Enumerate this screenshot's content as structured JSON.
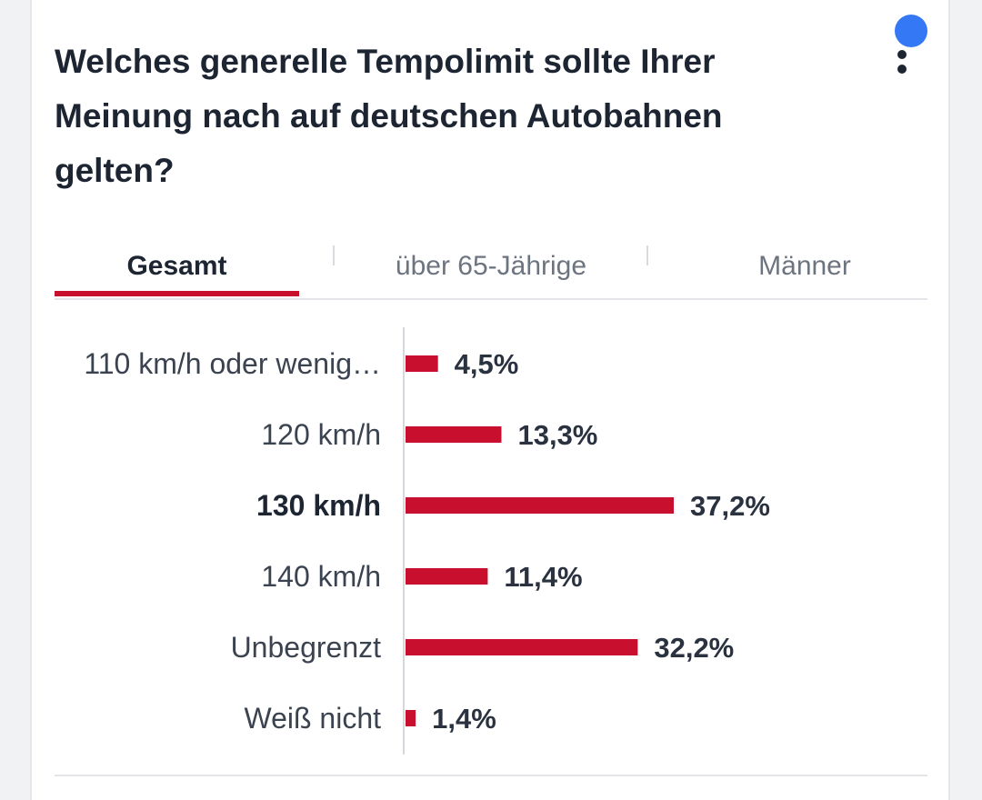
{
  "question": "Welches generelle Tempolimit sollte Ihrer Meinung nach auf deutschen Autobahnen gelten?",
  "tabs": [
    {
      "label": "Gesamt",
      "active": true
    },
    {
      "label": "über 65-Jährige",
      "active": false
    },
    {
      "label": "Männer",
      "active": false
    }
  ],
  "colors": {
    "bar": "#c8102e",
    "text": "#1d2532",
    "muted": "#6c7480",
    "notification": "#3478f6"
  },
  "icons": {
    "menu": "more-vertical-icon",
    "notification": "dot-icon"
  },
  "chart_data": {
    "type": "bar",
    "orientation": "horizontal",
    "categories": [
      "110 km/h oder wenig…",
      "120 km/h",
      "130 km/h",
      "140 km/h",
      "Unbegrenzt",
      "Weiß nicht"
    ],
    "values": [
      4.5,
      13.3,
      37.2,
      11.4,
      32.2,
      1.4
    ],
    "value_labels": [
      "4,5%",
      "13,3%",
      "37,2%",
      "11,4%",
      "32,2%",
      "1,4%"
    ],
    "highlighted_category": "130 km/h",
    "unit": "%",
    "xlim": [
      0,
      37.2
    ],
    "grid": false,
    "legend": "none"
  }
}
